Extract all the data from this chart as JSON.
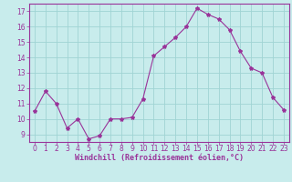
{
  "x": [
    0,
    1,
    2,
    3,
    4,
    5,
    6,
    7,
    8,
    9,
    10,
    11,
    12,
    13,
    14,
    15,
    16,
    17,
    18,
    19,
    20,
    21,
    22,
    23
  ],
  "y": [
    10.5,
    11.8,
    11.0,
    9.4,
    10.0,
    8.7,
    8.9,
    10.0,
    10.0,
    10.1,
    11.3,
    14.1,
    14.7,
    15.3,
    16.0,
    17.2,
    16.8,
    16.5,
    15.8,
    14.4,
    13.3,
    13.0,
    11.4,
    10.6
  ],
  "line_color": "#993399",
  "marker": "*",
  "marker_size": 3,
  "bg_color": "#c8ecec",
  "grid_color": "#a0d4d4",
  "xlabel": "Windchill (Refroidissement éolien,°C)",
  "xlabel_color": "#993399",
  "tick_color": "#993399",
  "ylim": [
    8.5,
    17.5
  ],
  "xlim": [
    -0.5,
    23.5
  ],
  "yticks": [
    9,
    10,
    11,
    12,
    13,
    14,
    15,
    16,
    17
  ],
  "xticks": [
    0,
    1,
    2,
    3,
    4,
    5,
    6,
    7,
    8,
    9,
    10,
    11,
    12,
    13,
    14,
    15,
    16,
    17,
    18,
    19,
    20,
    21,
    22,
    23
  ],
  "tick_fontsize": 5.5,
  "xlabel_fontsize": 6.0
}
